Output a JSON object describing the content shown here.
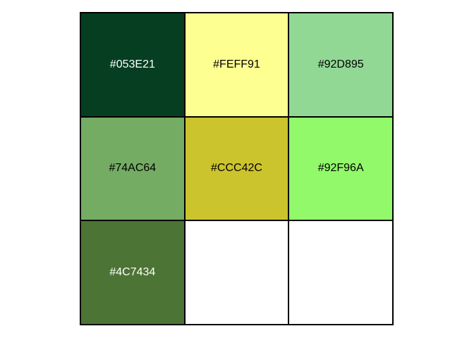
{
  "swatches": [
    {
      "hex": "#053E21",
      "label": "#053E21",
      "text_color": "#ffffff"
    },
    {
      "hex": "#FEFF91",
      "label": "#FEFF91",
      "text_color": "#000000"
    },
    {
      "hex": "#92D895",
      "label": "#92D895",
      "text_color": "#000000"
    },
    {
      "hex": "#74AC64",
      "label": "#74AC64",
      "text_color": "#000000"
    },
    {
      "hex": "#CCC42C",
      "label": "#CCC42C",
      "text_color": "#000000"
    },
    {
      "hex": "#92F96A",
      "label": "#92F96A",
      "text_color": "#000000"
    },
    {
      "hex": "#4C7434",
      "label": "#4C7434",
      "text_color": "#ffffff"
    },
    {
      "hex": "#FFFFFF",
      "label": "",
      "text_color": "#000000"
    },
    {
      "hex": "#FFFFFF",
      "label": "",
      "text_color": "#000000"
    }
  ]
}
